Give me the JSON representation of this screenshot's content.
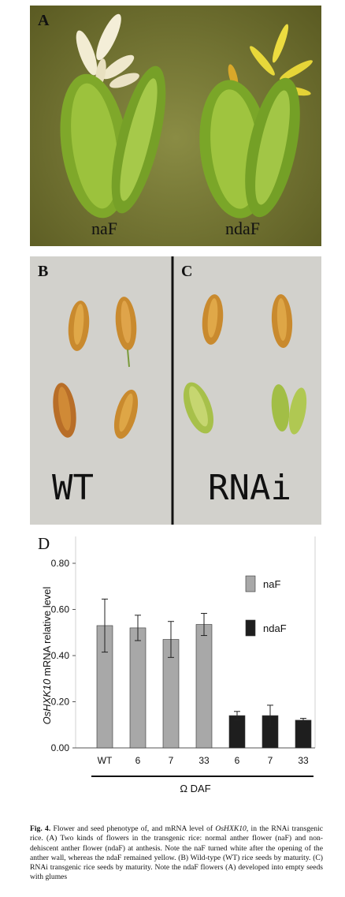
{
  "panel_a": {
    "label": "A",
    "left_caption": "naF",
    "right_caption": "ndaF"
  },
  "panel_b": {
    "label": "B",
    "caption": "WT"
  },
  "panel_c": {
    "label": "C",
    "caption": "RNAi"
  },
  "panel_d": {
    "label": "D"
  },
  "colors": {
    "naF": "#a8a8a8",
    "ndaF": "#1e1e1e",
    "green_glume": "#7fa82a",
    "yellow_anther": "#e8d83a",
    "white_anther": "#f2ecd2",
    "seed": "#c98a2e"
  },
  "chart_data": {
    "type": "bar",
    "ylabel_italic": "OsHXK10",
    "ylabel_rest": " mRNA relative level",
    "xlabel": "Ω DAF",
    "ylim": [
      0,
      0.8
    ],
    "yticks": [
      "0.00",
      "0.20",
      "0.40",
      "0.60",
      "0.80"
    ],
    "categories": [
      "WT",
      "6",
      "7",
      "33",
      "6",
      "7",
      "33"
    ],
    "values": [
      0.53,
      0.52,
      0.47,
      0.535,
      0.14,
      0.14,
      0.12
    ],
    "errors": [
      0.115,
      0.055,
      0.078,
      0.048,
      0.018,
      0.045,
      0.008
    ],
    "groups": [
      "naF",
      "naF",
      "naF",
      "naF",
      "ndaF",
      "ndaF",
      "ndaF"
    ],
    "legend": [
      {
        "name": "naF"
      },
      {
        "name": "ndaF"
      }
    ],
    "legend_position": "right"
  },
  "caption": {
    "fig_label": "Fig. 4.",
    "text_1": " Flower and seed phenotype of, and mRNA level of ",
    "gene": "OsHXK10",
    "text_2": ", in the RNAi transgenic rice. (A) Two kinds of flowers in the transgenic rice: normal anther flower (naF) and non-dehiscent anther flower (ndaF) at anthesis. Note the naF turned white after the opening of the anther wall, whereas the ndaF remained yellow. (B) Wild-type (WT) rice seeds by maturity. (C) RNAi transgenic rice seeds by maturity. Note the ndaF flowers (A) developed into empty seeds with glumes"
  }
}
